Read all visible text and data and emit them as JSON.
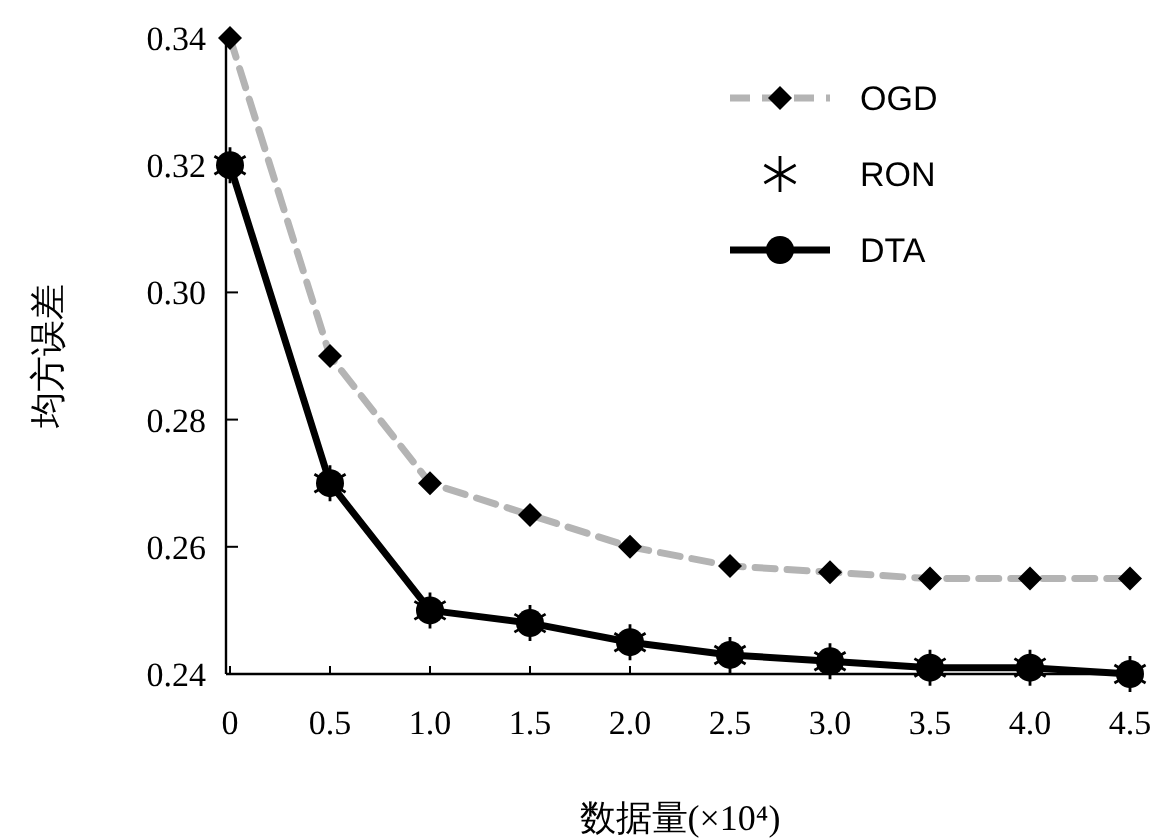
{
  "chart_data": {
    "type": "line",
    "xlabel": "数据量(×10⁴)",
    "ylabel": "均方误差",
    "x": [
      0,
      0.5,
      1,
      1.5,
      2,
      2.5,
      3,
      3.5,
      4,
      4.5
    ],
    "xlim": [
      0,
      4.5
    ],
    "xticks": [
      0,
      0.5,
      {
        "value": 1,
        "label": "1.0"
      },
      1.5,
      {
        "value": 2,
        "label": "2.0"
      },
      2.5,
      {
        "value": 3,
        "label": "3.0"
      },
      3.5,
      {
        "value": 4,
        "label": "4.0"
      },
      4.5
    ],
    "ylim": [
      0.24,
      0.34
    ],
    "yticks": [
      0.24,
      0.26,
      0.28,
      {
        "value": 0.3,
        "label": "0.30"
      },
      0.32,
      0.34
    ],
    "legend": "top right",
    "series": [
      {
        "name": "OGD",
        "color": "#b4b4b4",
        "marker": "diamond",
        "line_style": "dashed",
        "values": [
          0.34,
          0.29,
          0.27,
          0.265,
          0.26,
          0.257,
          0.256,
          0.255,
          0.255,
          0.255
        ]
      },
      {
        "name": "RON",
        "type": "scatter",
        "color": "#000000",
        "marker": "cross",
        "values": [
          0.32,
          0.27,
          0.25,
          0.248,
          0.245,
          0.243,
          0.242,
          0.241,
          0.241,
          0.24
        ]
      },
      {
        "name": "DTA",
        "color": "#000000",
        "marker": "circle",
        "line_style": "solid",
        "values": [
          0.32,
          0.27,
          0.25,
          0.248,
          0.245,
          0.243,
          0.242,
          0.241,
          0.241,
          0.24
        ]
      }
    ]
  }
}
